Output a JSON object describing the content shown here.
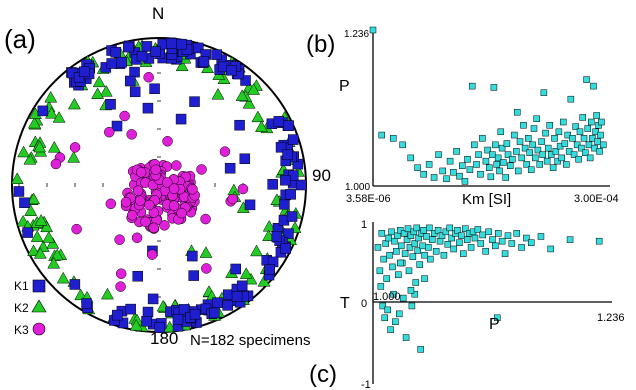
{
  "figure": {
    "stereonet": {
      "panel_label": "(a)",
      "north_label": "N",
      "east_label": "90",
      "south_label": "180",
      "count_label": "N=182 specimens",
      "legend": [
        {
          "label": "K1",
          "marker": "square",
          "color": "#1f1fd0"
        },
        {
          "label": "K2",
          "marker": "triangle",
          "color": "#22cc22"
        },
        {
          "label": "K3",
          "marker": "circle",
          "color": "#e020d8"
        }
      ]
    },
    "plot_b": {
      "panel_label": "(b)",
      "ylabel": "P",
      "xlabel": "Km [SI]",
      "x_min_label": "3.58E-06",
      "x_max_label": "3.00E-04",
      "y_min_label": "1.000",
      "y_max_label": "1.236"
    },
    "plot_c": {
      "panel_label": "(c)",
      "ylabel": "T",
      "xlabel": "P",
      "y_top_label": "1",
      "y_bottom_label": "-1",
      "y_zero_label": "0",
      "x_min_label": "1.000",
      "x_max_label": "1.236"
    }
  },
  "colors": {
    "k1": "#1f1fd0",
    "k2": "#22cc22",
    "k3": "#e020d8",
    "cyan": "#33dddd"
  },
  "chart_data": [
    {
      "type": "scatter",
      "projection": "equal-area stereonet (lower hemisphere)",
      "series": [
        {
          "name": "K1",
          "approx_count": 182,
          "distribution": "girdle near primitive, concentrated N-S and E"
        },
        {
          "name": "K2",
          "approx_count": 182,
          "distribution": "girdle near primitive"
        },
        {
          "name": "K3",
          "approx_count": 182,
          "distribution": "cluster near centre, trend ~135-190, plunge ~60-90"
        }
      ]
    },
    {
      "type": "scatter",
      "xlabel": "Km [SI]",
      "ylabel": "P",
      "xscale": "log",
      "xlim": [
        3.58e-06,
        0.0003
      ],
      "ylim": [
        1.0,
        1.236
      ],
      "points": [
        [
          4e-06,
          1.075
        ],
        [
          5e-06,
          1.07
        ],
        [
          6e-06,
          1.06
        ],
        [
          7e-06,
          1.04
        ],
        [
          8e-06,
          1.025
        ],
        [
          9e-06,
          1.015
        ],
        [
          1e-05,
          1.03
        ],
        [
          1.1e-05,
          1.01
        ],
        [
          1.2e-05,
          1.045
        ],
        [
          1.3e-05,
          1.02
        ],
        [
          1.4e-05,
          1.008
        ],
        [
          1.5e-05,
          1.035
        ],
        [
          1.6e-05,
          1.018
        ],
        [
          1.7e-05,
          1.05
        ],
        [
          1.8e-05,
          1.012
        ],
        [
          1.9e-05,
          1.028
        ],
        [
          2e-05,
          1.004
        ],
        [
          2.1e-05,
          1.038
        ],
        [
          2.2e-05,
          1.022
        ],
        [
          2.3e-05,
          1.15
        ],
        [
          2.4e-05,
          1.06
        ],
        [
          2.5e-05,
          1.03
        ],
        [
          2.6e-05,
          1.045
        ],
        [
          2.7e-05,
          1.015
        ],
        [
          2.8e-05,
          1.07
        ],
        [
          3e-05,
          1.035
        ],
        [
          3.1e-05,
          1.052
        ],
        [
          3.2e-05,
          1.025
        ],
        [
          3.3e-05,
          1.011
        ],
        [
          3.4e-05,
          1.045
        ],
        [
          3.5e-05,
          1.148
        ],
        [
          3.6e-05,
          1.06
        ],
        [
          3.7e-05,
          1.03
        ],
        [
          3.8e-05,
          1.04
        ],
        [
          3.9e-05,
          1.02
        ],
        [
          4e-05,
          1.08
        ],
        [
          4.1e-05,
          1.055
        ],
        [
          4.2e-05,
          1.033
        ],
        [
          4.4e-05,
          1.01
        ],
        [
          4.5e-05,
          1.062
        ],
        [
          4.6e-05,
          1.045
        ],
        [
          4.8e-05,
          1.028
        ],
        [
          5e-05,
          1.038
        ],
        [
          5.2e-05,
          1.075
        ],
        [
          5.4e-05,
          1.05
        ],
        [
          5.5e-05,
          1.11
        ],
        [
          5.6e-05,
          1.02
        ],
        [
          5.8e-05,
          1.065
        ],
        [
          6e-05,
          1.04
        ],
        [
          6.2e-05,
          1.09
        ],
        [
          6.4e-05,
          1.055
        ],
        [
          6.6e-05,
          1.03
        ],
        [
          6.8e-05,
          1.07
        ],
        [
          7e-05,
          1.048
        ],
        [
          7.2e-05,
          1.022
        ],
        [
          7.4e-05,
          1.06
        ],
        [
          7.6e-05,
          1.085
        ],
        [
          7.8e-05,
          1.04
        ],
        [
          8e-05,
          1.1
        ],
        [
          8.2e-05,
          1.052
        ],
        [
          8.5e-05,
          1.03
        ],
        [
          8.8e-05,
          1.065
        ],
        [
          9e-05,
          1.045
        ],
        [
          9.2e-05,
          1.14
        ],
        [
          9.5e-05,
          1.078
        ],
        [
          9.8e-05,
          1.035
        ],
        [
          0.0001,
          1.055
        ],
        [
          0.000103,
          1.09
        ],
        [
          0.000106,
          1.045
        ],
        [
          0.00011,
          1.025
        ],
        [
          0.000113,
          1.07
        ],
        [
          0.000116,
          1.05
        ],
        [
          0.00012,
          1.035
        ],
        [
          0.000123,
          1.08
        ],
        [
          0.000126,
          1.058
        ],
        [
          0.00013,
          1.04
        ],
        [
          0.000134,
          1.095
        ],
        [
          0.000138,
          1.062
        ],
        [
          0.000142,
          1.03
        ],
        [
          0.000146,
          1.075
        ],
        [
          0.00015,
          1.05
        ],
        [
          0.000155,
          1.13
        ],
        [
          0.00016,
          1.07
        ],
        [
          0.000165,
          1.045
        ],
        [
          0.00017,
          1.088
        ],
        [
          0.000175,
          1.06
        ],
        [
          0.00018,
          1.038
        ],
        [
          0.000185,
          1.08
        ],
        [
          0.00019,
          1.055
        ],
        [
          0.000195,
          1.102
        ],
        [
          0.0002,
          1.07
        ],
        [
          0.000205,
          1.048
        ],
        [
          0.00021,
          1.16
        ],
        [
          0.000215,
          1.085
        ],
        [
          0.00022,
          1.06
        ],
        [
          0.000225,
          1.04
        ],
        [
          0.00023,
          1.095
        ],
        [
          0.000235,
          1.07
        ],
        [
          0.00024,
          1.15
        ],
        [
          0.000245,
          1.055
        ],
        [
          0.00025,
          1.08
        ],
        [
          0.000255,
          1.105
        ],
        [
          0.00026,
          1.065
        ],
        [
          0.000265,
          1.09
        ],
        [
          0.00027,
          1.05
        ],
        [
          0.000275,
          1.075
        ],
        [
          0.00028,
          1.095
        ],
        [
          0.00029,
          1.06
        ]
      ]
    },
    {
      "type": "scatter",
      "xlabel": "P",
      "ylabel": "T",
      "xlim": [
        1.0,
        1.236
      ],
      "ylim": [
        -1,
        1
      ],
      "points": [
        [
          1.002,
          0.7
        ],
        [
          1.004,
          0.4
        ],
        [
          1.005,
          0.2
        ],
        [
          1.006,
          0.88
        ],
        [
          1.007,
          -0.05
        ],
        [
          1.008,
          0.55
        ],
        [
          1.009,
          -0.2
        ],
        [
          1.01,
          0.75
        ],
        [
          1.011,
          0.3
        ],
        [
          1.012,
          -0.1
        ],
        [
          1.013,
          0.82
        ],
        [
          1.014,
          0.6
        ],
        [
          1.015,
          -0.35
        ],
        [
          1.016,
          0.9
        ],
        [
          1.017,
          0.45
        ],
        [
          1.018,
          0.1
        ],
        [
          1.019,
          0.78
        ],
        [
          1.02,
          -0.25
        ],
        [
          1.021,
          0.65
        ],
        [
          1.022,
          0.85
        ],
        [
          1.023,
          0.35
        ],
        [
          1.024,
          -0.15
        ],
        [
          1.025,
          0.92
        ],
        [
          1.026,
          0.72
        ],
        [
          1.027,
          0.5
        ],
        [
          1.028,
          0.05
        ],
        [
          1.029,
          0.88
        ],
        [
          1.03,
          0.62
        ],
        [
          1.031,
          -0.45
        ],
        [
          1.032,
          0.8
        ],
        [
          1.033,
          0.94
        ],
        [
          1.034,
          0.4
        ],
        [
          1.035,
          0.7
        ],
        [
          1.036,
          0.85
        ],
        [
          1.037,
          -0.05
        ],
        [
          1.038,
          0.58
        ],
        [
          1.039,
          0.9
        ],
        [
          1.04,
          0.75
        ],
        [
          1.041,
          0.25
        ],
        [
          1.042,
          0.95
        ],
        [
          1.043,
          0.66
        ],
        [
          1.044,
          0.82
        ],
        [
          1.045,
          0.48
        ],
        [
          1.046,
          -0.6
        ],
        [
          1.047,
          0.88
        ],
        [
          1.048,
          0.72
        ],
        [
          1.049,
          0.92
        ],
        [
          1.05,
          0.6
        ],
        [
          1.052,
          0.84
        ],
        [
          1.054,
          0.7
        ],
        [
          1.055,
          0.95
        ],
        [
          1.056,
          0.55
        ],
        [
          1.058,
          0.8
        ],
        [
          1.06,
          0.88
        ],
        [
          1.062,
          0.65
        ],
        [
          1.064,
          0.92
        ],
        [
          1.066,
          0.78
        ],
        [
          1.068,
          0.85
        ],
        [
          1.07,
          0.6
        ],
        [
          1.072,
          0.9
        ],
        [
          1.074,
          0.74
        ],
        [
          1.076,
          0.95
        ],
        [
          1.078,
          0.82
        ],
        [
          1.08,
          0.68
        ],
        [
          1.082,
          0.88
        ],
        [
          1.084,
          0.92
        ],
        [
          1.086,
          0.76
        ],
        [
          1.088,
          0.85
        ],
        [
          1.09,
          0.62
        ],
        [
          1.092,
          0.94
        ],
        [
          1.094,
          0.8
        ],
        [
          1.096,
          0.88
        ],
        [
          1.098,
          0.7
        ],
        [
          1.1,
          0.9
        ],
        [
          1.102,
          0.82
        ],
        [
          1.105,
          0.93
        ],
        [
          1.108,
          0.75
        ],
        [
          1.11,
          0.86
        ],
        [
          1.113,
          0.65
        ],
        [
          1.116,
          0.9
        ],
        [
          1.12,
          0.8
        ],
        [
          1.123,
          0.72
        ],
        [
          1.126,
          0.88
        ],
        [
          1.13,
          0.78
        ],
        [
          1.133,
          0.62
        ],
        [
          1.136,
          0.85
        ],
        [
          1.14,
          0.75
        ],
        [
          1.145,
          0.88
        ],
        [
          1.15,
          0.7
        ],
        [
          1.155,
          0.82
        ],
        [
          1.16,
          0.76
        ],
        [
          1.17,
          0.84
        ],
        [
          1.18,
          0.68
        ],
        [
          1.2,
          0.8
        ],
        [
          1.125,
          -0.2
        ],
        [
          1.04,
          0.1
        ],
        [
          1.036,
          0.15
        ],
        [
          1.025,
          0.5
        ],
        [
          1.05,
          0.3
        ],
        [
          1.23,
          0.78
        ]
      ]
    }
  ]
}
